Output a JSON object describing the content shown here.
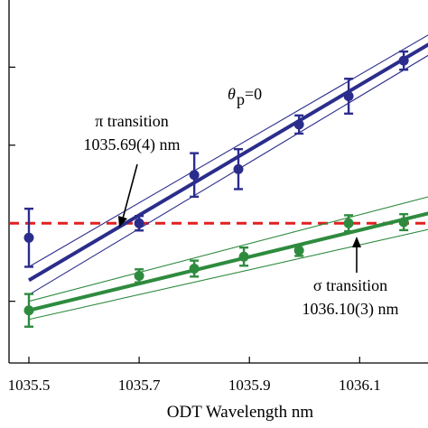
{
  "chart_data": {
    "type": "scatter",
    "title": "",
    "xlabel": "ODT Wavelength nm",
    "ylabel": "",
    "xlim": [
      1035.5,
      1036.2
    ],
    "ylim": [
      0,
      1
    ],
    "x_ticks": [
      1035.5,
      1035.7,
      1035.9,
      1036.1
    ],
    "x_tick_labels": [
      "1035.5",
      "1035.7",
      "1035.9",
      "1036.1"
    ],
    "y_ticks": [
      0.17,
      0.385,
      0.6,
      0.815
    ],
    "y_tick_labels": [],
    "grid": false,
    "legend": "none",
    "reference_line": {
      "y": 0.385,
      "style": "dashed",
      "color": "#e02020"
    },
    "series": [
      {
        "color": "#2b2d8c",
        "marker": "circle",
        "points": [
          {
            "x": 1035.5,
            "y": 0.345,
            "err": 0.08
          },
          {
            "x": 1035.7,
            "y": 0.385,
            "err": 0.02
          },
          {
            "x": 1035.8,
            "y": 0.518,
            "err": 0.06
          },
          {
            "x": 1035.88,
            "y": 0.534,
            "err": 0.055
          },
          {
            "x": 1035.99,
            "y": 0.657,
            "err": 0.025
          },
          {
            "x": 1036.08,
            "y": 0.735,
            "err": 0.048
          },
          {
            "x": 1036.18,
            "y": 0.833,
            "err": 0.025
          }
        ],
        "fit": {
          "x": [
            1035.5,
            1036.26
          ],
          "y": [
            0.228,
            0.909
          ]
        },
        "band_upper": {
          "x": [
            1035.5,
            1036.26
          ],
          "y": [
            0.265,
            0.935
          ]
        },
        "band_lower": {
          "x": [
            1035.5,
            1036.26
          ],
          "y": [
            0.188,
            0.88
          ]
        }
      },
      {
        "color": "#2e8b3e",
        "marker": "circle",
        "points": [
          {
            "x": 1035.5,
            "y": 0.145,
            "err": 0.045
          },
          {
            "x": 1035.7,
            "y": 0.24,
            "err": 0.018
          },
          {
            "x": 1035.8,
            "y": 0.26,
            "err": 0.022
          },
          {
            "x": 1035.89,
            "y": 0.293,
            "err": 0.025
          },
          {
            "x": 1035.99,
            "y": 0.31,
            "err": 0.015
          },
          {
            "x": 1036.08,
            "y": 0.385,
            "err": 0.022
          },
          {
            "x": 1036.18,
            "y": 0.388,
            "err": 0.022
          }
        ],
        "fit": {
          "x": [
            1035.5,
            1036.26
          ],
          "y": [
            0.145,
            0.425
          ]
        },
        "band_upper": {
          "x": [
            1035.5,
            1036.26
          ],
          "y": [
            0.17,
            0.472
          ]
        },
        "band_lower": {
          "x": [
            1035.5,
            1036.26
          ],
          "y": [
            0.12,
            0.38
          ]
        }
      }
    ],
    "annotations": {
      "theta_main": "θ",
      "theta_sub": "p",
      "theta_rest": "=0",
      "pi_line1": "π transition",
      "pi_line2": "1035.69(4) nm",
      "sigma_line1": "σ transition",
      "sigma_line2": "1036.10(3) nm"
    }
  }
}
